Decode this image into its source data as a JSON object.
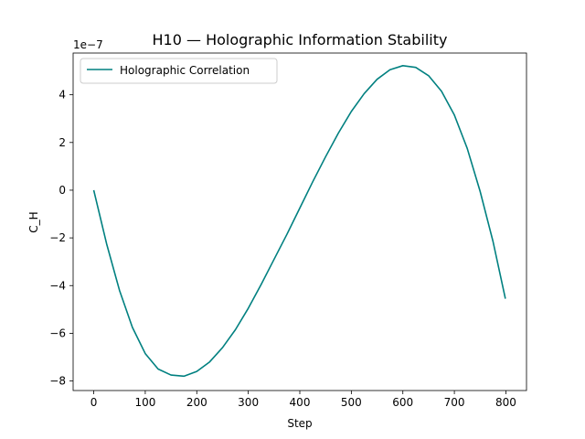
{
  "chart_data": {
    "type": "line",
    "title": "H10 — Holographic Information Stability",
    "xlabel": "Step",
    "ylabel": "C_H",
    "offset_text": "1e−7",
    "xlim": [
      -40,
      840
    ],
    "ylim": [
      -8.4,
      5.75
    ],
    "y_scale_factor": 1e-07,
    "grid": false,
    "legend_placement": "top-left",
    "x_ticks": [
      0,
      100,
      200,
      300,
      400,
      500,
      600,
      700,
      800
    ],
    "x_tick_labels": [
      "0",
      "100",
      "200",
      "300",
      "400",
      "500",
      "600",
      "700",
      "800"
    ],
    "y_ticks": [
      -8,
      -6,
      -4,
      -2,
      0,
      2,
      4
    ],
    "y_tick_labels": [
      "−8",
      "−6",
      "−4",
      "−2",
      "0",
      "2",
      "4"
    ],
    "series": [
      {
        "name": "Holographic Correlation",
        "color": "#008080",
        "x": [
          0,
          25,
          50,
          75,
          100,
          125,
          150,
          175,
          200,
          225,
          250,
          275,
          300,
          325,
          350,
          375,
          400,
          425,
          450,
          475,
          500,
          525,
          550,
          575,
          600,
          625,
          650,
          675,
          700,
          725,
          750,
          775,
          799
        ],
        "y": [
          0.0,
          -2.25,
          -4.2,
          -5.75,
          -6.85,
          -7.5,
          -7.75,
          -7.8,
          -7.6,
          -7.2,
          -6.6,
          -5.85,
          -4.95,
          -3.95,
          -2.9,
          -1.85,
          -0.75,
          0.35,
          1.4,
          2.4,
          3.3,
          4.05,
          4.65,
          5.05,
          5.22,
          5.15,
          4.8,
          4.15,
          3.15,
          1.75,
          -0.05,
          -2.15,
          -4.55
        ]
      }
    ]
  }
}
